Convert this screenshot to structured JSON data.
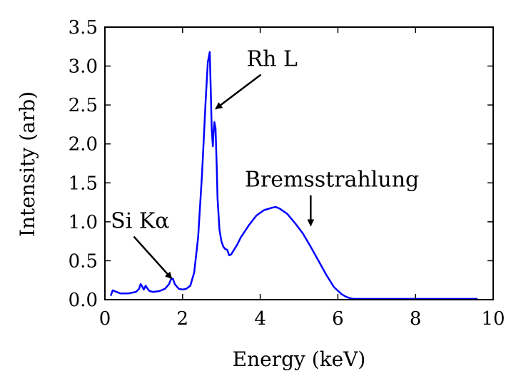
{
  "chart_data": {
    "type": "line",
    "title": "",
    "xlabel": "Energy (keV)",
    "ylabel": "Intensity (arb)",
    "xlim": [
      0,
      10
    ],
    "ylim": [
      0,
      3.5
    ],
    "xticks": [
      0,
      2,
      4,
      6,
      8,
      10
    ],
    "yticks": [
      0.0,
      0.5,
      1.0,
      1.5,
      2.0,
      2.5,
      3.0,
      3.5
    ],
    "xtick_labels": [
      "0",
      "2",
      "4",
      "6",
      "8",
      "10"
    ],
    "ytick_labels": [
      "0.0",
      "0.5",
      "1.0",
      "1.5",
      "2.0",
      "2.5",
      "3.0",
      "3.5"
    ],
    "grid": false,
    "legend": "none",
    "line_color": "#0000ff",
    "series": [
      {
        "x": [
          0.15,
          0.2,
          0.3,
          0.4,
          0.6,
          0.8,
          0.88,
          0.92,
          0.95,
          1.0,
          1.05,
          1.1,
          1.15,
          1.25,
          1.4,
          1.55,
          1.65,
          1.7,
          1.75,
          1.8,
          1.9,
          2.0,
          2.1,
          2.2,
          2.3,
          2.4,
          2.5,
          2.6,
          2.65,
          2.7,
          2.72,
          2.75,
          2.78,
          2.8,
          2.82,
          2.85,
          2.88,
          2.9,
          2.95,
          3.0,
          3.05,
          3.1,
          3.15,
          3.2,
          3.25,
          3.3,
          3.4,
          3.5,
          3.7,
          3.9,
          4.1,
          4.3,
          4.4,
          4.5,
          4.7,
          4.9,
          5.1,
          5.3,
          5.5,
          5.7,
          5.9,
          6.1,
          6.2,
          6.3,
          6.4,
          6.5,
          6.7,
          7.0,
          8.0,
          9.0,
          9.6
        ],
        "values": [
          0.05,
          0.12,
          0.1,
          0.08,
          0.08,
          0.1,
          0.14,
          0.2,
          0.18,
          0.13,
          0.18,
          0.14,
          0.11,
          0.1,
          0.11,
          0.14,
          0.2,
          0.26,
          0.27,
          0.2,
          0.14,
          0.13,
          0.14,
          0.18,
          0.35,
          0.8,
          1.6,
          2.6,
          3.05,
          3.18,
          2.8,
          2.2,
          1.97,
          2.15,
          2.28,
          2.2,
          1.7,
          1.3,
          0.9,
          0.75,
          0.68,
          0.65,
          0.64,
          0.57,
          0.58,
          0.62,
          0.7,
          0.8,
          0.95,
          1.08,
          1.15,
          1.18,
          1.19,
          1.17,
          1.1,
          0.98,
          0.85,
          0.68,
          0.5,
          0.32,
          0.16,
          0.07,
          0.04,
          0.02,
          0.01,
          0.01,
          0.01,
          0.01,
          0.01,
          0.01,
          0.01
        ]
      }
    ],
    "annotations": [
      {
        "text": "Rh L",
        "xy": [
          2.85,
          2.45
        ],
        "xytext": [
          3.65,
          3.0
        ]
      },
      {
        "text": "Bremsstrahlung",
        "xy": [
          5.3,
          0.95
        ],
        "xytext": [
          3.6,
          1.45
        ]
      },
      {
        "text": "Si Kα",
        "xy": [
          1.72,
          0.27
        ],
        "xytext": [
          0.15,
          0.92
        ]
      }
    ]
  }
}
